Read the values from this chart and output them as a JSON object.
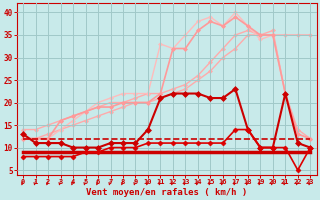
{
  "bg_color": "#c8eaea",
  "grid_color": "#a0c8c8",
  "title": "Vent moyen/en rafales ( km/h )",
  "xlim": [
    -0.5,
    23.5
  ],
  "ylim": [
    4,
    42
  ],
  "yticks": [
    5,
    10,
    15,
    20,
    25,
    30,
    35,
    40
  ],
  "xticks": [
    0,
    1,
    2,
    3,
    4,
    5,
    6,
    7,
    8,
    9,
    10,
    11,
    12,
    13,
    14,
    15,
    16,
    17,
    18,
    19,
    20,
    21,
    22,
    23
  ],
  "lines": [
    {
      "x": [
        0,
        1,
        2,
        3,
        4,
        5,
        6,
        7,
        8,
        9,
        10,
        11,
        12,
        13,
        14,
        15,
        16,
        17,
        18,
        19,
        20,
        21,
        22,
        23
      ],
      "y": [
        9,
        9,
        9,
        9,
        9,
        9,
        9,
        9,
        9,
        9,
        9,
        9,
        9,
        9,
        9,
        9,
        9,
        9,
        9,
        9,
        9,
        9,
        9,
        9
      ],
      "color": "#cc0000",
      "lw": 2.5,
      "ls": "-",
      "marker": null,
      "zorder": 5
    },
    {
      "x": [
        0,
        1,
        2,
        3,
        4,
        5,
        6,
        7,
        8,
        9,
        10,
        11,
        12,
        13,
        14,
        15,
        16,
        17,
        18,
        19,
        20,
        21,
        22,
        23
      ],
      "y": [
        12,
        12,
        12,
        12,
        12,
        12,
        12,
        12,
        12,
        12,
        12,
        12,
        12,
        12,
        12,
        12,
        12,
        12,
        12,
        12,
        12,
        12,
        12,
        12
      ],
      "color": "#cc0000",
      "lw": 1.2,
      "ls": "--",
      "marker": null,
      "zorder": 4
    },
    {
      "x": [
        0,
        1,
        2,
        3,
        4,
        5,
        6,
        7,
        8,
        9,
        10,
        11,
        12,
        13,
        14,
        15,
        16,
        17,
        18,
        19,
        20,
        21,
        22,
        23
      ],
      "y": [
        12,
        12,
        13,
        14,
        15,
        16,
        17,
        18,
        19,
        20,
        20,
        21,
        22,
        23,
        25,
        27,
        30,
        32,
        35,
        35,
        35,
        35,
        35,
        35
      ],
      "color": "#ffaaaa",
      "lw": 1.0,
      "ls": "-",
      "marker": "D",
      "ms": 2,
      "zorder": 2
    },
    {
      "x": [
        0,
        1,
        2,
        3,
        4,
        5,
        6,
        7,
        8,
        9,
        10,
        11,
        12,
        13,
        14,
        15,
        16,
        17,
        18,
        19,
        20,
        21,
        22,
        23
      ],
      "y": [
        14,
        14,
        15,
        16,
        17,
        18,
        19,
        20,
        20,
        21,
        22,
        22,
        23,
        24,
        26,
        29,
        32,
        35,
        36,
        35,
        36,
        22,
        14,
        12
      ],
      "color": "#ffaaaa",
      "lw": 1.0,
      "ls": "-",
      "marker": "D",
      "ms": 2,
      "zorder": 2
    },
    {
      "x": [
        0,
        1,
        2,
        3,
        4,
        5,
        6,
        7,
        8,
        9,
        10,
        11,
        12,
        13,
        14,
        15,
        16,
        17,
        18,
        19,
        20,
        21,
        22,
        23
      ],
      "y": [
        12,
        12,
        12,
        16,
        17,
        18,
        19,
        19,
        20,
        20,
        20,
        22,
        32,
        32,
        36,
        38,
        37,
        39,
        37,
        35,
        35,
        22,
        13,
        12
      ],
      "color": "#ff9999",
      "lw": 1.2,
      "ls": "-",
      "marker": "D",
      "ms": 2,
      "zorder": 3
    },
    {
      "x": [
        0,
        1,
        2,
        3,
        4,
        5,
        6,
        7,
        8,
        9,
        10,
        11,
        12,
        13,
        14,
        15,
        16,
        17,
        18,
        19,
        20,
        21,
        22,
        23
      ],
      "y": [
        12,
        12,
        12,
        14,
        16,
        18,
        20,
        21,
        22,
        22,
        22,
        33,
        32,
        35,
        38,
        39,
        37,
        40,
        37,
        34,
        35,
        22,
        13,
        12
      ],
      "color": "#ffbbbb",
      "lw": 1.0,
      "ls": "-",
      "marker": "D",
      "ms": 2,
      "zorder": 2
    },
    {
      "x": [
        0,
        1,
        2,
        3,
        4,
        5,
        6,
        7,
        8,
        9,
        10,
        11,
        12,
        13,
        14,
        15,
        16,
        17,
        18,
        19,
        20,
        21,
        22,
        23
      ],
      "y": [
        13,
        11,
        11,
        11,
        10,
        10,
        10,
        11,
        11,
        11,
        14,
        21,
        22,
        22,
        22,
        21,
        21,
        23,
        14,
        10,
        10,
        22,
        11,
        10
      ],
      "color": "#cc0000",
      "lw": 1.5,
      "ls": "-",
      "marker": "D",
      "ms": 3,
      "zorder": 5
    },
    {
      "x": [
        0,
        1,
        2,
        3,
        4,
        5,
        6,
        7,
        8,
        9,
        10,
        11,
        12,
        13,
        14,
        15,
        16,
        17,
        18,
        19,
        20,
        21,
        22,
        23
      ],
      "y": [
        8,
        8,
        8,
        8,
        8,
        9,
        9,
        10,
        10,
        10,
        11,
        11,
        11,
        11,
        11,
        11,
        11,
        14,
        14,
        10,
        10,
        10,
        5,
        10
      ],
      "color": "#dd0000",
      "lw": 1.2,
      "ls": "-",
      "marker": "D",
      "ms": 2.5,
      "zorder": 5
    }
  ],
  "arrow_color": "#cc0000",
  "xlabel_color": "#cc0000",
  "tick_color": "#cc0000",
  "spine_color": "#cc0000"
}
